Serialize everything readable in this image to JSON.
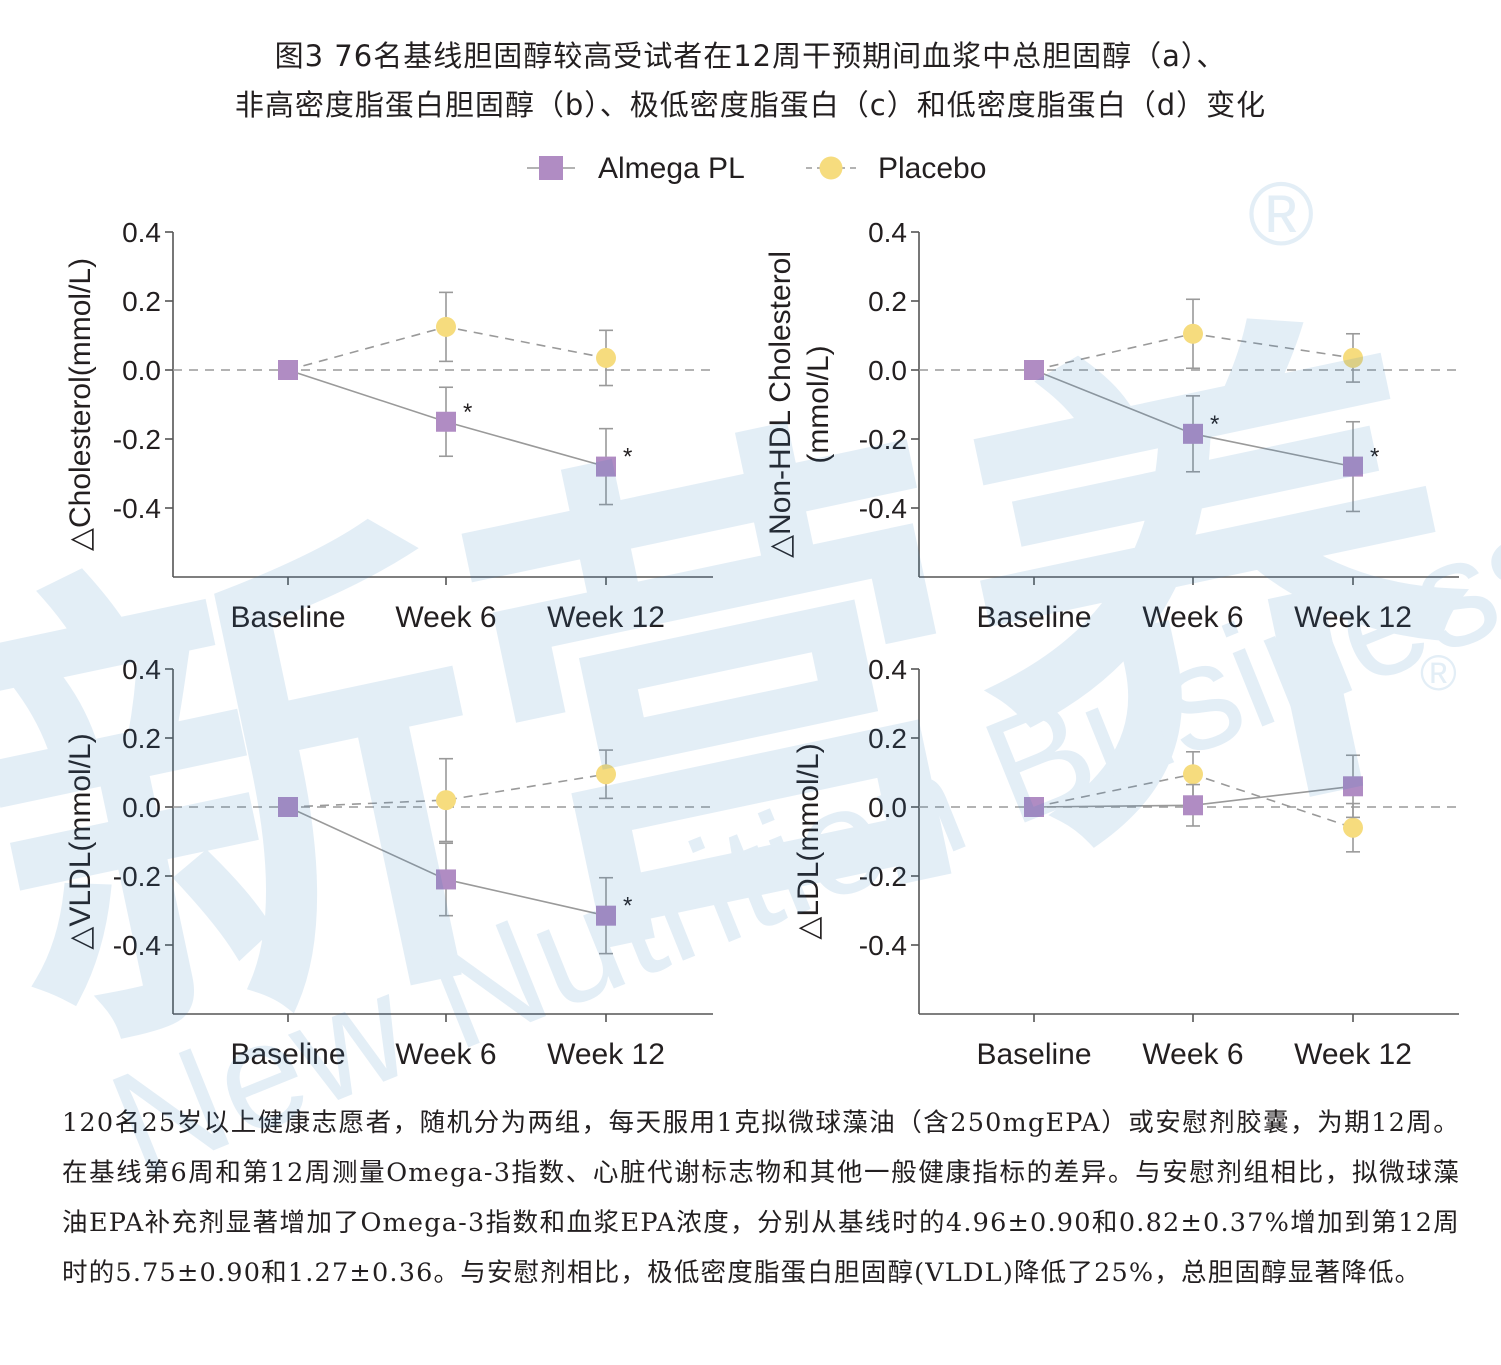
{
  "title_lines": [
    "图3 76名基线胆固醇较高受试者在12周干预期间血浆中总胆固醇（a）、",
    "非高密度脂蛋白胆固醇（b）、极低密度脂蛋白（c）和低密度脂蛋白（d）变化"
  ],
  "legend": [
    {
      "label": "Almega PL",
      "marker": "square",
      "color": "#b08cc3",
      "line": "solid"
    },
    {
      "label": "Placebo",
      "marker": "circle",
      "color": "#f6dc7e",
      "line": "dashed"
    }
  ],
  "colors": {
    "line": "#9a9a9a",
    "axis": "#555555",
    "error_bar": "#9a9a9a",
    "text": "#231f20"
  },
  "chart_data": [
    {
      "type": "line",
      "ylabel_lines": [
        "△Cholesterol(mmol/L)"
      ],
      "categories": [
        "Baseline",
        "Week 6",
        "Week 12"
      ],
      "y_ticks": [
        "0.4",
        "0.2",
        "0.0",
        "-0.2",
        "-0.4"
      ],
      "ylim": [
        -0.6,
        0.4
      ],
      "series": [
        {
          "name": "Almega PL",
          "values": [
            0.0,
            -0.15,
            -0.28
          ],
          "errors": [
            0,
            0.1,
            0.11
          ],
          "significant": [
            false,
            true,
            true
          ]
        },
        {
          "name": "Placebo",
          "values": [
            0.0,
            0.125,
            0.035
          ],
          "errors": [
            0,
            0.1,
            0.08
          ],
          "significant": [
            false,
            false,
            false
          ]
        }
      ],
      "reference_line": 0.0,
      "significance_marker": "*"
    },
    {
      "type": "line",
      "ylabel_lines": [
        "△Non-HDL Cholesterol",
        "(mmol/L)"
      ],
      "categories": [
        "Baseline",
        "Week 6",
        "Week 12"
      ],
      "y_ticks": [
        "0.4",
        "0.2",
        "0.0",
        "-0.2",
        "-0.4"
      ],
      "ylim": [
        -0.6,
        0.4
      ],
      "series": [
        {
          "name": "Almega PL",
          "values": [
            0.0,
            -0.185,
            -0.28
          ],
          "errors": [
            0,
            0.11,
            0.13
          ],
          "significant": [
            false,
            true,
            true
          ]
        },
        {
          "name": "Placebo",
          "values": [
            0.0,
            0.105,
            0.035
          ],
          "errors": [
            0,
            0.1,
            0.07
          ],
          "significant": [
            false,
            false,
            false
          ]
        }
      ],
      "reference_line": 0.0,
      "significance_marker": "*"
    },
    {
      "type": "line",
      "ylabel_lines": [
        "△VLDL(mmol/L)"
      ],
      "categories": [
        "Baseline",
        "Week 6",
        "Week 12"
      ],
      "y_ticks": [
        "0.4",
        "0.2",
        "0.0",
        "-0.2",
        "-0.4"
      ],
      "ylim": [
        -0.6,
        0.4
      ],
      "series": [
        {
          "name": "Almega PL",
          "values": [
            0.0,
            -0.21,
            -0.315
          ],
          "errors": [
            0,
            0.105,
            0.11
          ],
          "significant": [
            false,
            false,
            true
          ]
        },
        {
          "name": "Placebo",
          "values": [
            0.0,
            0.02,
            0.095
          ],
          "errors": [
            0,
            0.12,
            0.07
          ],
          "significant": [
            false,
            false,
            false
          ]
        }
      ],
      "reference_line": 0.0,
      "significance_marker": "*"
    },
    {
      "type": "line",
      "ylabel_lines": [
        "△LDL(mmol/L)"
      ],
      "categories": [
        "Baseline",
        "Week 6",
        "Week 12"
      ],
      "y_ticks": [
        "0.4",
        "0.2",
        "0.0",
        "-0.2",
        "-0.4"
      ],
      "ylim": [
        -0.6,
        0.4
      ],
      "series": [
        {
          "name": "Almega PL",
          "values": [
            0.0,
            0.005,
            0.06
          ],
          "errors": [
            0,
            0.06,
            0.09
          ],
          "significant": [
            false,
            false,
            false
          ]
        },
        {
          "name": "Placebo",
          "values": [
            0.0,
            0.095,
            -0.06
          ],
          "errors": [
            0,
            0.065,
            0.07
          ],
          "significant": [
            false,
            false,
            false
          ]
        }
      ],
      "reference_line": 0.0,
      "significance_marker": "*"
    }
  ],
  "caption": "120名25岁以上健康志愿者，随机分为两组，每天服用1克拟微球藻油（含250mgEPA）或安慰剂胶囊，为期12周。在基线第6周和第12周测量Omega-3指数、心脏代谢标志物和其他一般健康指标的差异。与安慰剂组相比，拟微球藻油EPA补充剂显著增加了Omega-3指数和血浆EPA浓度，分别从基线时的4.96±0.90和0.82±0.37%增加到第12周时的5.75±0.90和1.27±0.36。与安慰剂相比，极低密度脂蛋白胆固醇(VLDL)降低了25%，总胆固醇显著降低。",
  "watermark": {
    "brand": "新营养",
    "brand_en": "New Nutrition Business",
    "mark": "®"
  }
}
